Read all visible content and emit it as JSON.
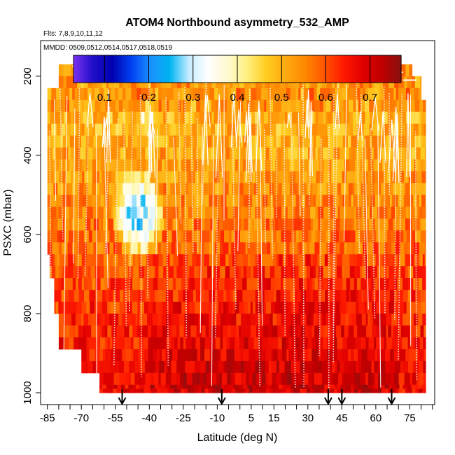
{
  "chart_data": {
    "type": "heatmap",
    "title": "ATOM4 Northbound asymmetry_532_AMP",
    "subtitle": "Flts: 7,8,9,10,11,12",
    "annotation": "MMDD: 0509,0512,0514,0517,0518,0519",
    "xlabel": "Latitude (deg N)",
    "ylabel": "PSXC (mbar)",
    "xlim": [
      -88,
      86
    ],
    "ylim": [
      1030,
      110
    ],
    "y_reversed": true,
    "x_ticks": [
      -85,
      -70,
      -55,
      -40,
      -25,
      -10,
      5,
      15,
      30,
      45,
      60,
      75
    ],
    "x_minor_ticks": [
      -80,
      -75,
      -65,
      -60,
      -50,
      -45,
      -35,
      -30,
      -20,
      -15,
      -5,
      0,
      10,
      20,
      25,
      35,
      40,
      50,
      55,
      65,
      70,
      80,
      85
    ],
    "y_ticks": [
      200,
      400,
      600,
      800,
      1000
    ],
    "colorbar": {
      "range": [
        0.03,
        0.77
      ],
      "ticks": [
        0.1,
        0.2,
        0.3,
        0.4,
        0.5,
        0.6,
        0.7
      ],
      "colors": [
        "#7b2ff0",
        "#2010c8",
        "#0000b0",
        "#0040f0",
        "#1a90ff",
        "#00b4f0",
        "#c8ecff",
        "#ffffff",
        "#fffad0",
        "#fff080",
        "#ffcc20",
        "#ffaa10",
        "#ff8800",
        "#ff5500",
        "#ff1a00",
        "#e00000",
        "#c00000",
        "#8a1010"
      ]
    },
    "profile_arrows_lat": [
      -52,
      -8,
      39,
      45,
      67
    ],
    "value_field": {
      "description": "asymmetry parameter at 532 nm, mostly 0.45-0.72; lower values (0.25-0.40) in the southern mid-latitude mid troposphere",
      "lat_range": [
        -85,
        80
      ],
      "p_range": [
        170,
        1000
      ],
      "dominant_range": [
        0.45,
        0.72
      ],
      "low_region": {
        "lat": [
          -55,
          -35
        ],
        "p": [
          450,
          650
        ],
        "min_value": 0.28
      }
    }
  }
}
